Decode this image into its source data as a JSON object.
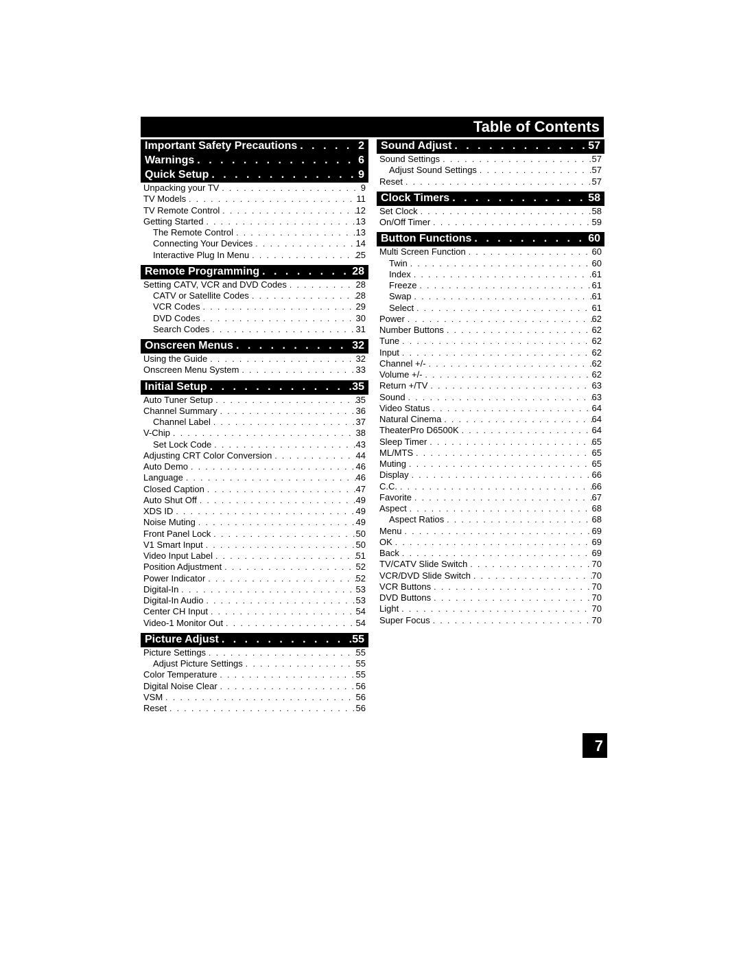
{
  "title": "Table of Contents",
  "page_number": "7",
  "colors": {
    "header_bg": "#000000",
    "header_fg": "#ffffff",
    "body_bg": "#ffffff",
    "body_fg": "#000000"
  },
  "left_col": [
    {
      "type": "section",
      "label": "Important Safety Precautions",
      "page": "2"
    },
    {
      "type": "section",
      "label": "Warnings",
      "page": "6"
    },
    {
      "type": "section",
      "label": "Quick Setup",
      "page": "9"
    },
    {
      "type": "entry",
      "label": "Unpacking your TV",
      "page": "9",
      "indent": 0
    },
    {
      "type": "entry",
      "label": "TV Models",
      "page": "11",
      "indent": 0
    },
    {
      "type": "entry",
      "label": "TV Remote Control",
      "page": "12",
      "indent": 0
    },
    {
      "type": "entry",
      "label": "Getting Started",
      "page": "13",
      "indent": 0
    },
    {
      "type": "entry",
      "label": "The Remote Control",
      "page": "13",
      "indent": 1
    },
    {
      "type": "entry",
      "label": "Connecting Your Devices",
      "page": "14",
      "indent": 1
    },
    {
      "type": "entry",
      "label": "Interactive Plug In Menu",
      "page": "25",
      "indent": 1
    },
    {
      "type": "section",
      "label": "Remote Programming",
      "page": "28",
      "spacer": true
    },
    {
      "type": "entry",
      "label": "Setting CATV, VCR and DVD Codes",
      "page": "28",
      "indent": 0
    },
    {
      "type": "entry",
      "label": "CATV or Satellite Codes",
      "page": "28",
      "indent": 1
    },
    {
      "type": "entry",
      "label": "VCR Codes",
      "page": "29",
      "indent": 1
    },
    {
      "type": "entry",
      "label": "DVD Codes",
      "page": "30",
      "indent": 1
    },
    {
      "type": "entry",
      "label": "Search Codes",
      "page": "31",
      "indent": 1
    },
    {
      "type": "section",
      "label": "Onscreen Menus",
      "page": "32",
      "spacer": true
    },
    {
      "type": "entry",
      "label": "Using the Guide",
      "page": "32",
      "indent": 0
    },
    {
      "type": "entry",
      "label": "Onscreen Menu System",
      "page": "33",
      "indent": 0
    },
    {
      "type": "section",
      "label": "Initial Setup",
      "page": "35",
      "spacer": true
    },
    {
      "type": "entry",
      "label": "Auto Tuner Setup",
      "page": "35",
      "indent": 0
    },
    {
      "type": "entry",
      "label": "Channel Summary",
      "page": "36",
      "indent": 0
    },
    {
      "type": "entry",
      "label": "Channel Label",
      "page": "37",
      "indent": 1
    },
    {
      "type": "entry",
      "label": "V-Chip",
      "page": "38",
      "indent": 0
    },
    {
      "type": "entry",
      "label": "Set Lock Code",
      "page": "43",
      "indent": 1
    },
    {
      "type": "entry",
      "label": "Adjusting CRT Color Conversion",
      "page": "44",
      "indent": 0
    },
    {
      "type": "entry",
      "label": "Auto Demo",
      "page": "46",
      "indent": 0
    },
    {
      "type": "entry",
      "label": "Language",
      "page": "46",
      "indent": 0
    },
    {
      "type": "entry",
      "label": "Closed Caption",
      "page": "47",
      "indent": 0
    },
    {
      "type": "entry",
      "label": "Auto Shut Off",
      "page": "49",
      "indent": 0
    },
    {
      "type": "entry",
      "label": "XDS ID",
      "page": "49",
      "indent": 0
    },
    {
      "type": "entry",
      "label": "Noise Muting",
      "page": "49",
      "indent": 0
    },
    {
      "type": "entry",
      "label": "Front Panel Lock",
      "page": "50",
      "indent": 0
    },
    {
      "type": "entry",
      "label": "V1 Smart Input",
      "page": "50",
      "indent": 0
    },
    {
      "type": "entry",
      "label": "Video Input Label",
      "page": "51",
      "indent": 0
    },
    {
      "type": "entry",
      "label": "Position Adjustment",
      "page": "52",
      "indent": 0
    },
    {
      "type": "entry",
      "label": "Power Indicator",
      "page": "52",
      "indent": 0
    },
    {
      "type": "entry",
      "label": "Digital-In",
      "page": "53",
      "indent": 0
    },
    {
      "type": "entry",
      "label": "Digital-In Audio",
      "page": "53",
      "indent": 0
    },
    {
      "type": "entry",
      "label": "Center CH Input",
      "page": "54",
      "indent": 0
    },
    {
      "type": "entry",
      "label": "Video-1 Monitor Out",
      "page": "54",
      "indent": 0
    },
    {
      "type": "section",
      "label": "Picture Adjust",
      "page": "55",
      "spacer": true
    },
    {
      "type": "entry",
      "label": "Picture Settings",
      "page": "55",
      "indent": 0
    },
    {
      "type": "entry",
      "label": "Adjust Picture Settings",
      "page": "55",
      "indent": 1
    },
    {
      "type": "entry",
      "label": "Color Temperature",
      "page": "55",
      "indent": 0
    },
    {
      "type": "entry",
      "label": "Digital Noise Clear",
      "page": "56",
      "indent": 0
    },
    {
      "type": "entry",
      "label": "VSM",
      "page": "56",
      "indent": 0
    },
    {
      "type": "entry",
      "label": "Reset",
      "page": "56",
      "indent": 0
    }
  ],
  "right_col": [
    {
      "type": "section",
      "label": "Sound Adjust",
      "page": "57"
    },
    {
      "type": "entry",
      "label": "Sound Settings",
      "page": "57",
      "indent": 0
    },
    {
      "type": "entry",
      "label": "Adjust Sound Settings",
      "page": "57",
      "indent": 1
    },
    {
      "type": "entry",
      "label": "Reset",
      "page": "57",
      "indent": 0
    },
    {
      "type": "section",
      "label": "Clock Timers",
      "page": "58",
      "spacer": true
    },
    {
      "type": "entry",
      "label": "Set Clock",
      "page": "58",
      "indent": 0
    },
    {
      "type": "entry",
      "label": "On/Off Timer",
      "page": "59",
      "indent": 0
    },
    {
      "type": "section",
      "label": "Button Functions",
      "page": "60",
      "spacer": true
    },
    {
      "type": "entry",
      "label": "Multi Screen Function",
      "page": "60",
      "indent": 0
    },
    {
      "type": "entry",
      "label": "Twin",
      "page": "60",
      "indent": 1
    },
    {
      "type": "entry",
      "label": "Index",
      "page": "61",
      "indent": 1
    },
    {
      "type": "entry",
      "label": "Freeze",
      "page": "61",
      "indent": 1
    },
    {
      "type": "entry",
      "label": "Swap",
      "page": "61",
      "indent": 1
    },
    {
      "type": "entry",
      "label": "Select",
      "page": "61",
      "indent": 1
    },
    {
      "type": "entry",
      "label": "Power",
      "page": "62",
      "indent": 0
    },
    {
      "type": "entry",
      "label": "Number Buttons",
      "page": "62",
      "indent": 0
    },
    {
      "type": "entry",
      "label": "Tune",
      "page": "62",
      "indent": 0
    },
    {
      "type": "entry",
      "label": "Input",
      "page": "62",
      "indent": 0
    },
    {
      "type": "entry",
      "label": "Channel +/-",
      "page": "62",
      "indent": 0
    },
    {
      "type": "entry",
      "label": "Volume +/-",
      "page": "62",
      "indent": 0
    },
    {
      "type": "entry",
      "label": "Return +/TV",
      "page": "63",
      "indent": 0
    },
    {
      "type": "entry",
      "label": "Sound",
      "page": "63",
      "indent": 0
    },
    {
      "type": "entry",
      "label": "Video Status",
      "page": "64",
      "indent": 0
    },
    {
      "type": "entry",
      "label": "Natural Cinema",
      "page": "64",
      "indent": 0
    },
    {
      "type": "entry",
      "label": "TheaterPro D6500K",
      "page": "64",
      "indent": 0
    },
    {
      "type": "entry",
      "label": "Sleep Timer",
      "page": "65",
      "indent": 0
    },
    {
      "type": "entry",
      "label": "ML/MTS",
      "page": "65",
      "indent": 0
    },
    {
      "type": "entry",
      "label": "Muting",
      "page": "65",
      "indent": 0
    },
    {
      "type": "entry",
      "label": "Display",
      "page": "66",
      "indent": 0
    },
    {
      "type": "entry",
      "label": "C.C.",
      "page": "66",
      "indent": 0
    },
    {
      "type": "entry",
      "label": "Favorite",
      "page": "67",
      "indent": 0
    },
    {
      "type": "entry",
      "label": "Aspect",
      "page": "68",
      "indent": 0
    },
    {
      "type": "entry",
      "label": "Aspect Ratios",
      "page": "68",
      "indent": 1
    },
    {
      "type": "entry",
      "label": "Menu",
      "page": "69",
      "indent": 0
    },
    {
      "type": "entry",
      "label": "OK",
      "page": "69",
      "indent": 0
    },
    {
      "type": "entry",
      "label": "Back",
      "page": "69",
      "indent": 0
    },
    {
      "type": "entry",
      "label": "TV/CATV Slide Switch",
      "page": "70",
      "indent": 0
    },
    {
      "type": "entry",
      "label": "VCR/DVD Slide Switch",
      "page": "70",
      "indent": 0
    },
    {
      "type": "entry",
      "label": "VCR Buttons",
      "page": "70",
      "indent": 0
    },
    {
      "type": "entry",
      "label": "DVD Buttons",
      "page": "70",
      "indent": 0
    },
    {
      "type": "entry",
      "label": "Light",
      "page": "70",
      "indent": 0
    },
    {
      "type": "entry",
      "label": "Super Focus",
      "page": "70",
      "indent": 0
    }
  ]
}
